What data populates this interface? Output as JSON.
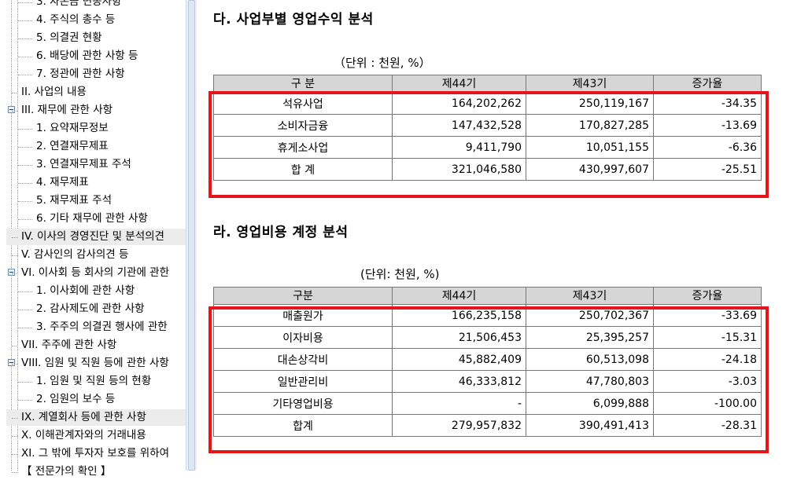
{
  "tree": {
    "items": [
      {
        "label": "3. 자본금 변동사항",
        "indent": 2,
        "expander": false,
        "selected": false
      },
      {
        "label": "4. 주식의 총수 등",
        "indent": 2,
        "expander": false,
        "selected": false
      },
      {
        "label": "5. 의결권 현황",
        "indent": 2,
        "expander": false,
        "selected": false
      },
      {
        "label": "6. 배당에 관한 사항 등",
        "indent": 2,
        "expander": false,
        "selected": false
      },
      {
        "label": "7. 정관에 관한 사항",
        "indent": 2,
        "expander": false,
        "selected": false
      },
      {
        "label": "II. 사업의 내용",
        "indent": 1,
        "expander": false,
        "selected": false
      },
      {
        "label": "III. 재무에 관한 사항",
        "indent": 1,
        "expander": true,
        "selected": false
      },
      {
        "label": "1. 요약재무정보",
        "indent": 2,
        "expander": false,
        "selected": false
      },
      {
        "label": "2. 연결재무제표",
        "indent": 2,
        "expander": false,
        "selected": false
      },
      {
        "label": "3. 연결재무제표 주석",
        "indent": 2,
        "expander": false,
        "selected": false
      },
      {
        "label": "4. 재무제표",
        "indent": 2,
        "expander": false,
        "selected": false
      },
      {
        "label": "5. 재무제표 주석",
        "indent": 2,
        "expander": false,
        "selected": false
      },
      {
        "label": "6. 기타 재무에 관한 사항",
        "indent": 2,
        "expander": false,
        "selected": false
      },
      {
        "label": "IV. 이사의 경영진단 및 분석의견",
        "indent": 1,
        "expander": false,
        "selected": true
      },
      {
        "label": "V. 감사인의 감사의견 등",
        "indent": 1,
        "expander": false,
        "selected": false
      },
      {
        "label": "VI. 이사회 등 회사의 기관에 관한",
        "indent": 1,
        "expander": true,
        "selected": false
      },
      {
        "label": "1. 이사회에 관한 사항",
        "indent": 2,
        "expander": false,
        "selected": false
      },
      {
        "label": "2. 감사제도에 관한 사항",
        "indent": 2,
        "expander": false,
        "selected": false
      },
      {
        "label": "3. 주주의 의결권 행사에 관한",
        "indent": 2,
        "expander": false,
        "selected": false
      },
      {
        "label": "VII. 주주에 관한 사항",
        "indent": 1,
        "expander": false,
        "selected": false
      },
      {
        "label": "VIII. 임원 및 직원 등에 관한 사항",
        "indent": 1,
        "expander": true,
        "selected": false
      },
      {
        "label": "1. 임원 및 직원 등의 현황",
        "indent": 2,
        "expander": false,
        "selected": false
      },
      {
        "label": "2. 임원의 보수 등",
        "indent": 2,
        "expander": false,
        "selected": false
      },
      {
        "label": "IX. 계열회사 등에 관한 사항",
        "indent": 1,
        "expander": false,
        "selected": true
      },
      {
        "label": "X. 이해관계자와의 거래내용",
        "indent": 1,
        "expander": false,
        "selected": false
      },
      {
        "label": "XI. 그 밖에 투자자 보호를 위하여",
        "indent": 1,
        "expander": false,
        "selected": false
      },
      {
        "label": "【 전문가의 확인 】",
        "indent": 1,
        "expander": false,
        "selected": false
      }
    ]
  },
  "section1": {
    "title": "다. 사업부별 영업수익 분석",
    "unit": "（단위 : 천원, %）",
    "headers": [
      "구 분",
      "제44기",
      "제43기",
      "증가율"
    ],
    "rows": [
      [
        "석유사업",
        "164,202,262",
        "250,119,167",
        "-34.35"
      ],
      [
        "소비자금융",
        "147,432,528",
        "170,827,285",
        "-13.69"
      ],
      [
        "휴게소사업",
        "9,411,790",
        "10,051,155",
        "-6.36"
      ],
      [
        "합 계",
        "321,046,580",
        "430,997,607",
        "-25.51"
      ]
    ]
  },
  "section2": {
    "title": "라. 영업비용 계정 분석",
    "unit": "(단위: 천원, %)",
    "headers": [
      "구분",
      "제44기",
      "제43기",
      "증가율"
    ],
    "rows": [
      [
        "매출원가",
        "166,235,158",
        "250,702,367",
        "-33.69"
      ],
      [
        "이자비용",
        "21,506,453",
        "25,395,257",
        "-15.31"
      ],
      [
        "대손상각비",
        "45,882,409",
        "60,513,098",
        "-24.18"
      ],
      [
        "일반관리비",
        "46,333,812",
        "47,780,803",
        "-3.03"
      ],
      [
        "기타영업비용",
        "-",
        "6,099,888",
        "-100.00"
      ],
      [
        "합계",
        "279,957,832",
        "390,491,413",
        "-28.31"
      ]
    ]
  },
  "colors": {
    "highlight": "#e8141c",
    "header_bg": "#d6d6d6",
    "selected_bg": "#ececec"
  }
}
